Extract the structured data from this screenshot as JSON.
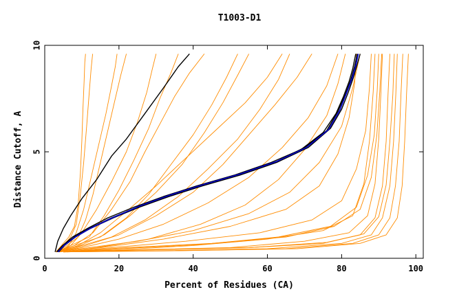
{
  "chart_data": {
    "type": "line",
    "title": "T1003-D1",
    "xlabel": "Percent of Residues (CA)",
    "ylabel": "Distance Cutoff, A",
    "xlim": [
      0,
      102
    ],
    "ylim": [
      0,
      10
    ],
    "x_ticks": [
      "0",
      "20",
      "40",
      "60",
      "80",
      "100"
    ],
    "y_ticks": [
      "0",
      "5",
      "10"
    ],
    "grid": false,
    "legend": "none",
    "colors": {
      "background_models": "#ff8c00",
      "highlight_models": "#000000",
      "reference_model": "#0000cd"
    },
    "series": [
      {
        "x": [
          3.0,
          4.5,
          6.5,
          8.0,
          9.0,
          9.6,
          10.0,
          10.3,
          10.6,
          10.8,
          11.0
        ],
        "y": [
          0.3,
          0.6,
          1.0,
          1.5,
          2.5,
          4.0,
          5.5,
          7.0,
          8.3,
          9.2,
          9.6
        ]
      },
      {
        "x": [
          3.0,
          5.0,
          7.0,
          8.5,
          9.5,
          10.5,
          11.3,
          12.0,
          12.5,
          12.9
        ],
        "y": [
          0.3,
          0.6,
          1.0,
          1.6,
          2.8,
          4.5,
          6.2,
          7.8,
          8.9,
          9.6
        ]
      },
      {
        "x": [
          3.0,
          6.0,
          9.0,
          11.0,
          13.0,
          15.0,
          17.0,
          19.0,
          20.5,
          22.0
        ],
        "y": [
          0.3,
          0.6,
          1.0,
          1.8,
          3.0,
          4.5,
          6.0,
          7.5,
          8.6,
          9.6
        ]
      },
      {
        "x": [
          3.0,
          7.0,
          12.0,
          16.0,
          20.0,
          24.0,
          28.0,
          31.0,
          34.0,
          36.0
        ],
        "y": [
          0.3,
          0.6,
          1.0,
          2.0,
          3.2,
          4.6,
          6.1,
          7.5,
          8.7,
          9.6
        ]
      },
      {
        "x": [
          3.0,
          8.0,
          15.0,
          22.0,
          28.0,
          34.0,
          40.0,
          45.0,
          49.0,
          52.0
        ],
        "y": [
          0.3,
          0.6,
          1.0,
          1.9,
          3.0,
          4.4,
          5.8,
          7.2,
          8.5,
          9.6
        ]
      },
      {
        "x": [
          3.0,
          10.0,
          18.0,
          27.0,
          36.0,
          44.0,
          52.0,
          58.0,
          63.0,
          66.0
        ],
        "y": [
          0.3,
          0.6,
          1.0,
          1.8,
          2.9,
          4.2,
          5.6,
          7.0,
          8.4,
          9.6
        ]
      },
      {
        "x": [
          3.0,
          10.0,
          20.0,
          32.0,
          44.0,
          55.0,
          64.0,
          71.0,
          76.0,
          79.0
        ],
        "y": [
          0.3,
          0.5,
          0.9,
          1.6,
          2.6,
          3.8,
          5.2,
          6.6,
          8.1,
          9.6
        ]
      },
      {
        "x": [
          3.0,
          12.0,
          25.0,
          40.0,
          55.0,
          66.0,
          74.0,
          80.0,
          83.0,
          85.0
        ],
        "y": [
          0.3,
          0.5,
          0.8,
          1.3,
          2.1,
          3.1,
          4.5,
          6.2,
          8.0,
          9.6
        ]
      },
      {
        "x": [
          5.0,
          20.0,
          40.0,
          60.0,
          75.0,
          83.0,
          86.0,
          87.5,
          88.5,
          89.0
        ],
        "y": [
          0.3,
          0.4,
          0.6,
          0.9,
          1.3,
          2.0,
          3.5,
          5.5,
          7.8,
          9.6
        ]
      },
      {
        "x": [
          5.0,
          25.0,
          50.0,
          70.0,
          82.0,
          87.0,
          89.0,
          90.0,
          90.6,
          91.0
        ],
        "y": [
          0.3,
          0.4,
          0.5,
          0.8,
          1.2,
          2.0,
          3.5,
          5.6,
          7.8,
          9.6
        ]
      },
      {
        "x": [
          5.0,
          30.0,
          55.0,
          75.0,
          85.0,
          89.0,
          91.0,
          92.0,
          92.5,
          93.0
        ],
        "y": [
          0.3,
          0.4,
          0.5,
          0.7,
          1.1,
          1.9,
          3.4,
          5.5,
          7.7,
          9.6
        ]
      },
      {
        "x": [
          5.0,
          30.0,
          60.0,
          80.0,
          88.0,
          91.0,
          93.0,
          94.0,
          94.6,
          95.0
        ],
        "y": [
          0.3,
          0.35,
          0.45,
          0.7,
          1.1,
          1.9,
          3.4,
          5.5,
          7.7,
          9.6
        ]
      },
      {
        "x": [
          5.0,
          35.0,
          65.0,
          83.0,
          90.0,
          93.0,
          94.5,
          95.5,
          96.0,
          96.5
        ],
        "y": [
          0.3,
          0.35,
          0.45,
          0.7,
          1.1,
          1.9,
          3.4,
          5.5,
          7.7,
          9.6
        ]
      },
      {
        "x": [
          5.0,
          35.0,
          68.0,
          85.0,
          92.0,
          95.0,
          96.3,
          97.0,
          97.5,
          98.0
        ],
        "y": [
          0.3,
          0.35,
          0.45,
          0.7,
          1.1,
          1.9,
          3.4,
          5.5,
          7.7,
          9.6
        ]
      },
      {
        "x": [
          5.0,
          22.0,
          45.0,
          65.0,
          78.0,
          85.0,
          88.0,
          89.5,
          90.3,
          90.8
        ],
        "y": [
          0.3,
          0.5,
          0.7,
          1.0,
          1.5,
          2.3,
          3.8,
          5.8,
          7.9,
          9.6
        ]
      },
      {
        "x": [
          5.0,
          18.0,
          38.0,
          58.0,
          72.0,
          80.0,
          84.0,
          86.5,
          87.5,
          88.0
        ],
        "y": [
          0.3,
          0.5,
          0.8,
          1.2,
          1.8,
          2.7,
          4.2,
          6.0,
          8.0,
          9.6
        ]
      },
      {
        "x": [
          4.0,
          15.0,
          32.0,
          50.0,
          65.0,
          74.0,
          79.0,
          82.0,
          83.5,
          84.0
        ],
        "y": [
          0.3,
          0.5,
          0.9,
          1.5,
          2.3,
          3.4,
          4.9,
          6.6,
          8.2,
          9.6
        ]
      },
      {
        "x": [
          4.0,
          9.0,
          15.0,
          22.0,
          30.0,
          38.0,
          46.0,
          54.0,
          60.0,
          64.0
        ],
        "y": [
          0.3,
          0.6,
          1.2,
          2.2,
          3.4,
          4.7,
          6.0,
          7.3,
          8.5,
          9.6
        ]
      },
      {
        "x": [
          4.0,
          7.0,
          10.0,
          14.0,
          18.0,
          22.0,
          25.0,
          27.5,
          29.0,
          30.0
        ],
        "y": [
          0.3,
          0.6,
          1.2,
          2.3,
          3.6,
          5.0,
          6.4,
          7.8,
          8.9,
          9.6
        ]
      },
      {
        "x": [
          4.0,
          8.0,
          13.0,
          18.0,
          23.0,
          27.0,
          31.0,
          35.0,
          39.0,
          43.0
        ],
        "y": [
          0.3,
          0.6,
          1.2,
          2.3,
          3.6,
          5.0,
          6.3,
          7.6,
          8.7,
          9.6
        ]
      },
      {
        "x": [
          4.0,
          11.0,
          20.0,
          30.0,
          40.0,
          48.0,
          55.0,
          62.0,
          68.0,
          72.0
        ],
        "y": [
          0.3,
          0.6,
          1.1,
          2.0,
          3.1,
          4.4,
          5.8,
          7.2,
          8.5,
          9.6
        ]
      },
      {
        "x": [
          4.0,
          14.0,
          28.0,
          42.0,
          54.0,
          63.0,
          70.0,
          76.0,
          79.0,
          81.0
        ],
        "y": [
          0.3,
          0.5,
          0.9,
          1.6,
          2.5,
          3.7,
          5.1,
          6.7,
          8.2,
          9.6
        ]
      },
      {
        "x": [
          6.0,
          28.0,
          55.0,
          76.0,
          86.0,
          90.0,
          92.0,
          93.0,
          93.8,
          94.2
        ],
        "y": [
          0.3,
          0.4,
          0.5,
          0.75,
          1.15,
          1.95,
          3.45,
          5.5,
          7.7,
          9.6
        ]
      },
      {
        "x": [
          6.0,
          20.0,
          42.0,
          63.0,
          77.0,
          84.0,
          87.0,
          88.8,
          89.6,
          90.0
        ],
        "y": [
          0.3,
          0.45,
          0.65,
          1.0,
          1.5,
          2.4,
          3.9,
          5.8,
          7.9,
          9.6
        ]
      },
      {
        "x": [
          4.0,
          6.5,
          8.5,
          10.5,
          12.5,
          14.5,
          16.5,
          18.0,
          19.0,
          19.5
        ],
        "y": [
          0.3,
          0.6,
          1.2,
          2.3,
          3.8,
          5.3,
          6.8,
          8.1,
          9.0,
          9.6
        ]
      },
      {
        "x": [
          4.0,
          9.5,
          16.0,
          23.0,
          30.0,
          37.0,
          43.0,
          48.0,
          52.0,
          55.0
        ],
        "y": [
          0.3,
          0.6,
          1.1,
          2.0,
          3.1,
          4.4,
          5.9,
          7.3,
          8.6,
          9.6
        ]
      }
    ],
    "highlight_series": [
      {
        "x": [
          2.8,
          3.5,
          5.0,
          7.0,
          10.0,
          14.0,
          18.0,
          22.0,
          27.0,
          32.0,
          36.0,
          39.0
        ],
        "y": [
          0.3,
          0.8,
          1.4,
          2.0,
          2.8,
          3.7,
          4.8,
          5.6,
          6.8,
          8.0,
          9.0,
          9.6
        ]
      },
      {
        "x": [
          3.5,
          5.0,
          8.0,
          12.0,
          18.0,
          25.0,
          33.0,
          42.0,
          52.0,
          62.0,
          70.0,
          76.0,
          79.0,
          81.0,
          82.5,
          83.5,
          84.2
        ],
        "y": [
          0.3,
          0.6,
          1.0,
          1.4,
          1.9,
          2.4,
          2.9,
          3.4,
          3.9,
          4.5,
          5.2,
          6.0,
          6.9,
          7.7,
          8.4,
          9.0,
          9.6
        ]
      },
      {
        "x": [
          3.2,
          4.8,
          7.5,
          11.5,
          17.0,
          24.0,
          32.0,
          41.0,
          51.0,
          61.0,
          69.0,
          75.0,
          78.5,
          80.5,
          82.0,
          83.0,
          83.8
        ],
        "y": [
          0.3,
          0.6,
          1.0,
          1.4,
          1.9,
          2.4,
          2.9,
          3.4,
          3.9,
          4.5,
          5.1,
          5.9,
          6.8,
          7.6,
          8.3,
          8.9,
          9.6
        ]
      },
      {
        "x": [
          3.8,
          5.3,
          8.3,
          12.3,
          18.5,
          25.5,
          33.5,
          42.5,
          52.5,
          62.5,
          71.0,
          77.0,
          80.0,
          81.8,
          83.2,
          84.2,
          85.0
        ],
        "y": [
          0.3,
          0.6,
          1.0,
          1.4,
          1.9,
          2.4,
          2.9,
          3.4,
          3.9,
          4.5,
          5.2,
          6.1,
          7.0,
          7.8,
          8.5,
          9.1,
          9.6
        ]
      }
    ],
    "reference_series": {
      "x": [
        3.6,
        5.2,
        8.2,
        12.2,
        18.2,
        25.5,
        33.5,
        42.5,
        52.5,
        62.5,
        70.5,
        76.5,
        79.5,
        81.3,
        82.8,
        83.8,
        84.5
      ],
      "y": [
        0.3,
        0.6,
        1.0,
        1.4,
        1.9,
        2.45,
        2.95,
        3.45,
        3.95,
        4.55,
        5.2,
        6.05,
        6.95,
        7.75,
        8.45,
        9.05,
        9.6
      ]
    }
  }
}
